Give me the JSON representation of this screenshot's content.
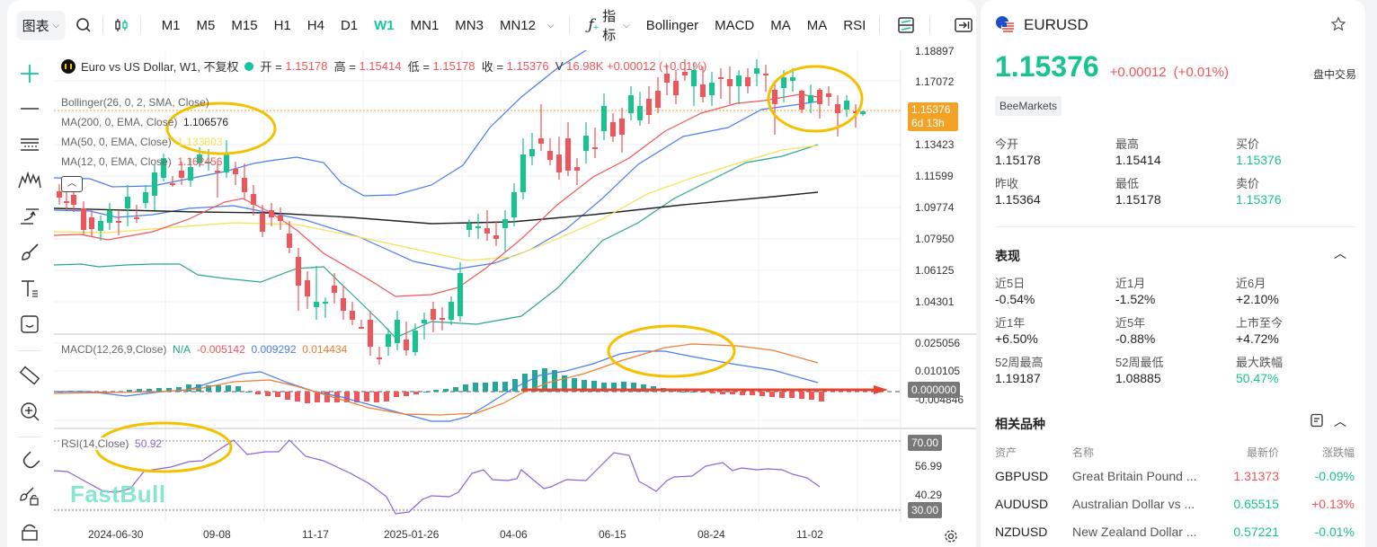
{
  "toolbar": {
    "chart_menu": "图表",
    "timeframes": [
      "M1",
      "M5",
      "M15",
      "H1",
      "H4",
      "D1",
      "W1",
      "MN1",
      "MN3",
      "MN12"
    ],
    "active_timeframe": "W1",
    "indicators_label": "指标",
    "indicator_shortcuts": [
      "Bollinger",
      "MACD",
      "MA",
      "MA",
      "RSI"
    ]
  },
  "legend": {
    "title": "Euro vs US Dollar, W1, 不复权",
    "open_label": "开 =",
    "open": "1.15178",
    "high_label": "高 =",
    "high": "1.15414",
    "low_label": "低 =",
    "low": "1.15178",
    "close_label": "收 =",
    "close": "1.15376",
    "volume_label": "V",
    "volume": "16.98K",
    "change": "+0.00012 (+0.01%)"
  },
  "indicators": {
    "bollinger": "Bollinger(26, 0, 2, SMA, Close)",
    "ma200_label": "MA(200, 0, EMA, Close)",
    "ma200_value": "1.106576",
    "ma50_label": "MA(50, 0, EMA, Close)",
    "ma50_value": "1.133803",
    "ma12_label": "MA(12, 0, EMA, Close)",
    "ma12_value": "1.162456",
    "macd_label": "MACD(12,26,9,Close)",
    "macd_hist": "N/A",
    "macd_v1": "-0.005142",
    "macd_v2": "0.009292",
    "macd_v3": "0.014434",
    "rsi_label": "RSI(14,Close)",
    "rsi_value": "50.92"
  },
  "price_axis": [
    "1.18897",
    "1.17072",
    "1.13423",
    "1.11599",
    "1.09774",
    "1.07950",
    "1.06125",
    "1.04301"
  ],
  "current_price_tag": {
    "price": "1.15376",
    "countdown": "6d 13h"
  },
  "macd_axis": [
    "0.025056",
    "0.010105",
    "-0.004846"
  ],
  "macd_zero_tag": "0.000000",
  "rsi_axis": {
    "upper": "70.00",
    "mid": "56.99",
    "low": "40.29",
    "lower": "30.00"
  },
  "time_axis": [
    "2024-06-30",
    "09-08",
    "11-17",
    "2025-01-26",
    "04-06",
    "06-15",
    "08-24",
    "11-02"
  ],
  "watermark": "FastBull",
  "colors": {
    "up": "#17c48f",
    "down": "#f0555a",
    "accent": "#17c6a0",
    "ma200": "#222222",
    "ma50": "#f5e253",
    "ma12": "#f0555a",
    "boll": "#4a7cf0",
    "price_tag": "#f2a325",
    "annotation": "#f5c000"
  },
  "symbol": {
    "name": "EURUSD",
    "price": "1.15376",
    "change": "+0.00012",
    "change_pct": "(+0.01%)",
    "status": "盘中交易",
    "broker": "BeeMarkets"
  },
  "quote": [
    {
      "label": "今开",
      "value": "1.15178"
    },
    {
      "label": "最高",
      "value": "1.15414"
    },
    {
      "label": "买价",
      "value": "1.15376"
    },
    {
      "label": "昨收",
      "value": "1.15364"
    },
    {
      "label": "最低",
      "value": "1.15178"
    },
    {
      "label": "卖价",
      "value": "1.15376"
    }
  ],
  "performance": {
    "title": "表现",
    "items": [
      {
        "label": "近5日",
        "value": "-0.54%"
      },
      {
        "label": "近1月",
        "value": "-1.52%"
      },
      {
        "label": "近6月",
        "value": "+2.10%"
      },
      {
        "label": "近1年",
        "value": "+6.50%"
      },
      {
        "label": "近5年",
        "value": "-0.88%"
      },
      {
        "label": "上市至今",
        "value": "+4.72%"
      },
      {
        "label": "52周最高",
        "value": "1.19187"
      },
      {
        "label": "52周最低",
        "value": "1.08885"
      },
      {
        "label": "最大跌幅",
        "value": "50.47%"
      }
    ]
  },
  "related": {
    "title": "相关品种",
    "headers": [
      "资产",
      "名称",
      "最新价",
      "涨跌幅"
    ],
    "rows": [
      {
        "asset": "GBPUSD",
        "name": "Great Britain Pound ...",
        "price": "1.31373",
        "change": "-0.09%"
      },
      {
        "asset": "AUDUSD",
        "name": "Australian Dollar vs ...",
        "price": "0.65515",
        "change": "+0.13%"
      },
      {
        "asset": "NZDUSD",
        "name": "New Zealand Dollar ...",
        "price": "0.57221",
        "change": "-0.01%"
      }
    ]
  }
}
